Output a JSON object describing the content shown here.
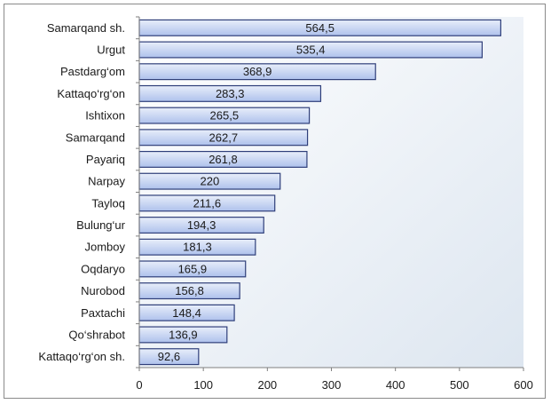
{
  "chart_data": {
    "type": "bar",
    "orientation": "horizontal",
    "categories": [
      "Samarqand sh.",
      "Urgut",
      "Pastdarg‘om",
      "Kattaqo‘rg‘on",
      "Ishtixon",
      "Samarqand",
      "Payariq",
      "Narpay",
      "Tayloq",
      "Bulung‘ur",
      "Jomboy",
      "Oqdaryo",
      "Nurobod",
      "Paxtachi",
      "Qo‘shrabot",
      "Kattaqo‘rg‘on sh."
    ],
    "values": [
      564.5,
      535.4,
      368.9,
      283.3,
      265.5,
      262.7,
      261.8,
      220,
      211.6,
      194.3,
      181.3,
      165.9,
      156.8,
      148.4,
      136.9,
      92.6
    ],
    "value_labels": [
      "564,5",
      "535,4",
      "368,9",
      "283,3",
      "265,5",
      "262,7",
      "261,8",
      "220",
      "211,6",
      "194,3",
      "181,3",
      "165,9",
      "156,8",
      "148,4",
      "136,9",
      "92,6"
    ],
    "xlim": [
      0,
      600
    ],
    "xticks": [
      0,
      100,
      200,
      300,
      400,
      500,
      600
    ],
    "title": "",
    "xlabel": "",
    "ylabel": "",
    "grid": false,
    "legend": "none",
    "colors": {
      "plot_bg_top": "#ffffff",
      "plot_bg_bottom": "#dde6f0",
      "bar_fill_light": "#e8eefa",
      "bar_fill_dark": "#aec1ec",
      "bar_border": "#2f3f7a",
      "axis": "#7f7f7f"
    }
  }
}
